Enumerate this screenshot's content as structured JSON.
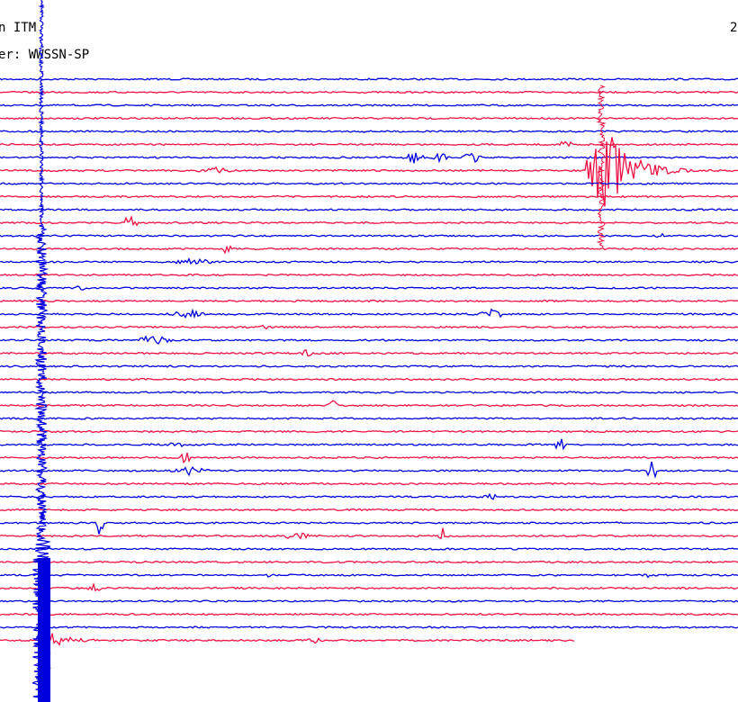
{
  "header": {
    "station": "n ITM",
    "filter": "er: WWSSN-SP",
    "date": "2"
  }
}
